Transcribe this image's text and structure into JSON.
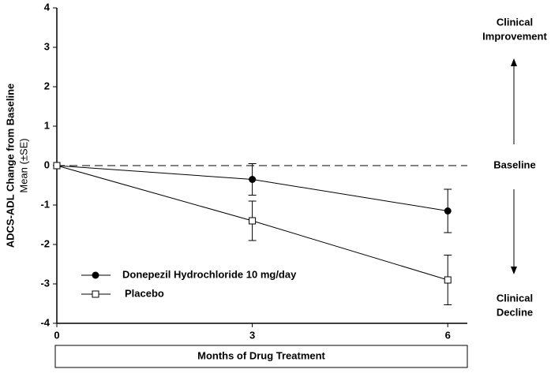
{
  "chart_data": {
    "type": "line",
    "y_label": "ADCS-ADL Change from Baseline",
    "y_sublabel": "Mean (±SE)",
    "x_label": "Months of Drug Treatment",
    "x": [
      0,
      3,
      6
    ],
    "xlim": [
      0,
      6.3
    ],
    "xticks": [
      0,
      3,
      6
    ],
    "ylim": [
      -4,
      4
    ],
    "yticks": [
      -4,
      -3,
      -2,
      -1,
      0,
      1,
      2,
      3,
      4
    ],
    "reference_line": 0,
    "legend": "lower left",
    "annotations": [
      {
        "lines": [
          "Clinical",
          "Improvement"
        ],
        "arrow": "up"
      },
      {
        "lines": [
          "Baseline"
        ]
      },
      {
        "lines": [
          "Clinical",
          "Decline"
        ],
        "arrow": "down"
      }
    ],
    "series": [
      {
        "name": "Donepezil Hydrochloride 10 mg/day",
        "color": "#000000",
        "marker": "circle",
        "values": [
          0,
          -0.35,
          -1.15
        ],
        "errors": [
          0,
          0.4,
          0.55
        ]
      },
      {
        "name": "Placebo",
        "color": "#000000",
        "marker": "square",
        "values": [
          0,
          -1.4,
          -2.9
        ],
        "errors": [
          0,
          0.5,
          0.63
        ]
      }
    ]
  }
}
